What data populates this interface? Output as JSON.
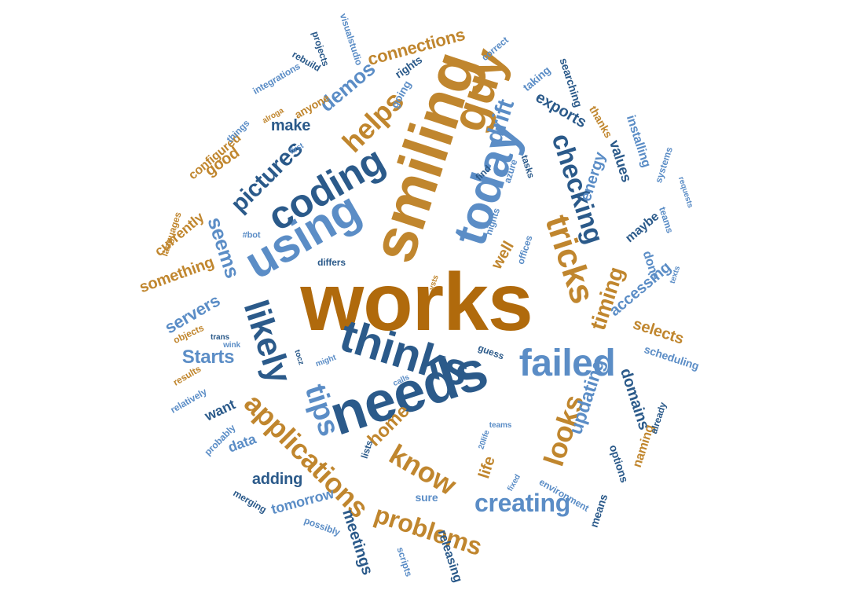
{
  "colors": {
    "orange": "#c0862e",
    "light_blue": "#5b8dc6",
    "navy": "#2b5a8a",
    "big_orange": "#b06a0c"
  },
  "words": [
    {
      "text": "works",
      "color": "big_orange"
    },
    {
      "text": "needs",
      "color": "navy"
    },
    {
      "text": "smiling",
      "color": "orange"
    },
    {
      "text": "guy",
      "color": "orange"
    },
    {
      "text": "today",
      "color": "light_blue"
    },
    {
      "text": "thinks",
      "color": "navy"
    },
    {
      "text": "using",
      "color": "light_blue"
    },
    {
      "text": "coding",
      "color": "navy"
    },
    {
      "text": "failed",
      "color": "light_blue"
    },
    {
      "text": "likely",
      "color": "navy"
    },
    {
      "text": "tricks",
      "color": "orange"
    },
    {
      "text": "tips",
      "color": "light_blue"
    },
    {
      "text": "checking",
      "color": "navy"
    },
    {
      "text": "applications",
      "color": "orange"
    },
    {
      "text": "helps",
      "color": "orange"
    },
    {
      "text": "know",
      "color": "orange"
    },
    {
      "text": "looks",
      "color": "orange"
    },
    {
      "text": "problems",
      "color": "orange"
    },
    {
      "text": "creating",
      "color": "light_blue"
    },
    {
      "text": "pictures",
      "color": "navy"
    },
    {
      "text": "seems",
      "color": "light_blue"
    },
    {
      "text": "drift",
      "color": "light_blue"
    },
    {
      "text": "updating",
      "color": "light_blue"
    },
    {
      "text": "timing",
      "color": "orange"
    },
    {
      "text": "Starts",
      "color": "light_blue"
    },
    {
      "text": "demos",
      "color": "light_blue"
    },
    {
      "text": "connections",
      "color": "orange"
    },
    {
      "text": "make",
      "color": "navy"
    },
    {
      "text": "well",
      "color": "orange"
    },
    {
      "text": "energy",
      "color": "light_blue"
    },
    {
      "text": "values",
      "color": "navy"
    },
    {
      "text": "servers",
      "color": "light_blue"
    },
    {
      "text": "something",
      "color": "orange"
    },
    {
      "text": "selects",
      "color": "orange"
    },
    {
      "text": "accessing",
      "color": "light_blue"
    },
    {
      "text": "domains",
      "color": "navy"
    },
    {
      "text": "home",
      "color": "orange"
    },
    {
      "text": "adding",
      "color": "navy"
    },
    {
      "text": "tomorrow",
      "color": "light_blue"
    },
    {
      "text": "meetings",
      "color": "navy"
    },
    {
      "text": "life",
      "color": "orange"
    },
    {
      "text": "exports",
      "color": "navy"
    },
    {
      "text": "good",
      "color": "orange"
    },
    {
      "text": "configured",
      "color": "orange"
    },
    {
      "text": "currently",
      "color": "orange"
    },
    {
      "text": "maybe",
      "color": "navy"
    },
    {
      "text": "done",
      "color": "light_blue"
    },
    {
      "text": "installing",
      "color": "light_blue"
    },
    {
      "text": "want",
      "color": "navy"
    },
    {
      "text": "data",
      "color": "light_blue"
    },
    {
      "text": "naming",
      "color": "orange"
    },
    {
      "text": "scheduling",
      "color": "light_blue"
    },
    {
      "text": "sure",
      "color": "light_blue"
    },
    {
      "text": "options",
      "color": "navy"
    },
    {
      "text": "means",
      "color": "navy"
    },
    {
      "text": "releasing",
      "color": "navy"
    },
    {
      "text": "taking",
      "color": "light_blue"
    },
    {
      "text": "anyone",
      "color": "orange"
    },
    {
      "text": "rights",
      "color": "navy"
    },
    {
      "text": "going",
      "color": "light_blue"
    },
    {
      "text": "searching",
      "color": "navy"
    },
    {
      "text": "thanks",
      "color": "orange"
    },
    {
      "text": "integrations",
      "color": "light_blue"
    },
    {
      "text": "rebuild",
      "color": "navy"
    },
    {
      "text": "projects",
      "color": "navy"
    },
    {
      "text": "visualstudio",
      "color": "light_blue"
    },
    {
      "text": "correct",
      "color": "light_blue"
    },
    {
      "text": "things",
      "color": "light_blue"
    },
    {
      "text": "alroga",
      "color": "orange"
    },
    {
      "text": "first",
      "color": "light_blue"
    },
    {
      "text": "languages",
      "color": "orange"
    },
    {
      "text": "#bot",
      "color": "light_blue"
    },
    {
      "text": "tasks",
      "color": "navy"
    },
    {
      "text": "azure",
      "color": "light_blue"
    },
    {
      "text": "find",
      "color": "navy"
    },
    {
      "text": "nights",
      "color": "light_blue"
    },
    {
      "text": "offices",
      "color": "light_blue"
    },
    {
      "text": "systems",
      "color": "light_blue"
    },
    {
      "text": "teams",
      "color": "light_blue"
    },
    {
      "text": "requests",
      "color": "light_blue"
    },
    {
      "text": "texts",
      "color": "light_blue"
    },
    {
      "text": "differs",
      "color": "navy"
    },
    {
      "text": "vsts",
      "color": "orange"
    },
    {
      "text": "objects",
      "color": "orange"
    },
    {
      "text": "trans",
      "color": "navy"
    },
    {
      "text": "wink",
      "color": "light_blue"
    },
    {
      "text": "tocz",
      "color": "navy"
    },
    {
      "text": "might",
      "color": "light_blue"
    },
    {
      "text": "calls",
      "color": "light_blue"
    },
    {
      "text": "guess",
      "color": "navy"
    },
    {
      "text": "results",
      "color": "orange"
    },
    {
      "text": "relatively",
      "color": "light_blue"
    },
    {
      "text": "probably",
      "color": "light_blue"
    },
    {
      "text": "lists",
      "color": "navy"
    },
    {
      "text": "teams",
      "color": "light_blue"
    },
    {
      "text": "20life",
      "color": "light_blue"
    },
    {
      "text": "environment",
      "color": "light_blue"
    },
    {
      "text": "fixed",
      "color": "light_blue"
    },
    {
      "text": "already",
      "color": "navy"
    },
    {
      "text": "merging",
      "color": "navy"
    },
    {
      "text": "possibly",
      "color": "light_blue"
    },
    {
      "text": "scripts",
      "color": "light_blue"
    }
  ]
}
